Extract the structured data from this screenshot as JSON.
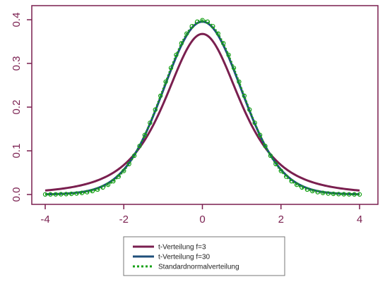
{
  "chart_data": {
    "type": "line",
    "title": "",
    "xlabel": "",
    "ylabel": "",
    "xlim": [
      -4,
      4
    ],
    "ylim": [
      0.0,
      0.4
    ],
    "x_ticks": [
      "-4",
      "-2",
      "0",
      "2",
      "4"
    ],
    "y_ticks": [
      "0.0",
      "0.1",
      "0.2",
      "0.3",
      "0.4"
    ],
    "grid": false,
    "legend_position": "bottom-center",
    "colors": {
      "axis": "#7a1f4f",
      "t3": "#7a1f4f",
      "t30": "#1f4f7a",
      "normal": "#16a016",
      "markers": "#16a016"
    },
    "series": [
      {
        "name": "t-Verteilung f=3",
        "style": "solid",
        "x": [
          -4,
          -3.5,
          -3,
          -2.5,
          -2,
          -1.5,
          -1,
          -0.5,
          0,
          0.5,
          1,
          1.5,
          2,
          2.5,
          3,
          3.5,
          4
        ],
        "y": [
          0.009,
          0.013,
          0.023,
          0.036,
          0.068,
          0.115,
          0.207,
          0.313,
          0.368,
          0.313,
          0.207,
          0.115,
          0.068,
          0.036,
          0.023,
          0.013,
          0.009
        ]
      },
      {
        "name": "t-Verteilung f=30",
        "style": "solid",
        "x": [
          -4,
          -3.5,
          -3,
          -2.5,
          -2,
          -1.5,
          -1,
          -0.5,
          0,
          0.5,
          1,
          1.5,
          2,
          2.5,
          3,
          3.5,
          4
        ],
        "y": [
          0.0002,
          0.0012,
          0.0051,
          0.0193,
          0.0562,
          0.128,
          0.237,
          0.348,
          0.396,
          0.348,
          0.237,
          0.128,
          0.0562,
          0.0193,
          0.0051,
          0.0012,
          0.0002
        ]
      },
      {
        "name": "Standardnormalverteilung",
        "style": "dotted-with-markers",
        "x": [
          -4,
          -3.5,
          -3,
          -2.5,
          -2,
          -1.5,
          -1,
          -0.5,
          0,
          0.5,
          1,
          1.5,
          2,
          2.5,
          3,
          3.5,
          4
        ],
        "y": [
          0.0001,
          0.0009,
          0.0044,
          0.0175,
          0.054,
          0.1295,
          0.242,
          0.352,
          0.399,
          0.352,
          0.242,
          0.1295,
          0.054,
          0.0175,
          0.0044,
          0.0009,
          0.0001
        ]
      }
    ]
  }
}
